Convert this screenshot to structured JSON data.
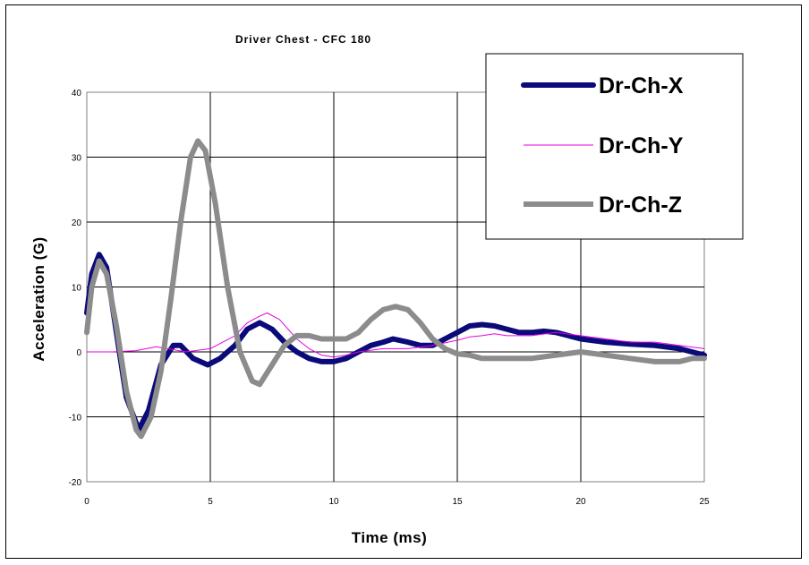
{
  "colors": {
    "background": "#ffffff",
    "gridline": "#000000",
    "dr_ch_x": "#0a0a7a",
    "dr_ch_y": "#e600e6",
    "dr_ch_z": "#8c8c8c"
  },
  "chart_data": {
    "type": "line",
    "title": "Driver Chest - CFC 180",
    "xlabel": "Time (ms)",
    "ylabel": "Acceleration (G)",
    "xlim": [
      0,
      25
    ],
    "ylim": [
      -20,
      40
    ],
    "x_ticks": [
      "0",
      "5",
      "10",
      "15",
      "20",
      "25"
    ],
    "y_ticks": [
      "40",
      "30",
      "20",
      "10",
      "0",
      "-10",
      "-20"
    ],
    "grid": true,
    "legend_position": "top-right",
    "series": [
      {
        "name": "Dr-Ch-X",
        "color": "#0a0a7a",
        "points": [
          [
            0,
            6
          ],
          [
            0.2,
            12
          ],
          [
            0.5,
            15
          ],
          [
            0.8,
            13
          ],
          [
            1.2,
            3
          ],
          [
            1.6,
            -7
          ],
          [
            2.1,
            -12
          ],
          [
            2.5,
            -9
          ],
          [
            3,
            -2
          ],
          [
            3.5,
            1
          ],
          [
            3.8,
            1
          ],
          [
            4.3,
            -1
          ],
          [
            4.9,
            -2
          ],
          [
            5.4,
            -1
          ],
          [
            6,
            1
          ],
          [
            6.5,
            3.5
          ],
          [
            7,
            4.5
          ],
          [
            7.5,
            3.5
          ],
          [
            8,
            1.5
          ],
          [
            8.5,
            0
          ],
          [
            9,
            -1
          ],
          [
            9.5,
            -1.5
          ],
          [
            10,
            -1.5
          ],
          [
            10.5,
            -1
          ],
          [
            11,
            0
          ],
          [
            11.5,
            1
          ],
          [
            12,
            1.5
          ],
          [
            12.4,
            2
          ],
          [
            13,
            1.5
          ],
          [
            13.5,
            1
          ],
          [
            14,
            1
          ],
          [
            14.5,
            2
          ],
          [
            15,
            3
          ],
          [
            15.5,
            4
          ],
          [
            16,
            4.2
          ],
          [
            16.5,
            4
          ],
          [
            17,
            3.5
          ],
          [
            17.5,
            3
          ],
          [
            18,
            3
          ],
          [
            18.5,
            3.2
          ],
          [
            19,
            3
          ],
          [
            19.5,
            2.5
          ],
          [
            20,
            2
          ],
          [
            21,
            1.5
          ],
          [
            22,
            1.2
          ],
          [
            23,
            1
          ],
          [
            24,
            0.5
          ],
          [
            25,
            -0.5
          ]
        ]
      },
      {
        "name": "Dr-Ch-Y",
        "color": "#e600e6",
        "points": [
          [
            0,
            0
          ],
          [
            1,
            0
          ],
          [
            2,
            0.2
          ],
          [
            2.8,
            0.8
          ],
          [
            3.3,
            0.5
          ],
          [
            4,
            0
          ],
          [
            5,
            0.5
          ],
          [
            6,
            2.5
          ],
          [
            6.5,
            4.5
          ],
          [
            7,
            5.5
          ],
          [
            7.3,
            6
          ],
          [
            7.8,
            5
          ],
          [
            8.5,
            2
          ],
          [
            9,
            0.5
          ],
          [
            9.5,
            -0.5
          ],
          [
            10,
            -0.8
          ],
          [
            10.5,
            -0.5
          ],
          [
            11,
            0
          ],
          [
            12,
            0.5
          ],
          [
            13,
            0.5
          ],
          [
            14,
            1
          ],
          [
            15,
            1.8
          ],
          [
            15.5,
            2.3
          ],
          [
            16,
            2.5
          ],
          [
            16.5,
            2.8
          ],
          [
            17,
            2.5
          ],
          [
            18,
            2.5
          ],
          [
            19,
            3
          ],
          [
            20,
            2.5
          ],
          [
            21,
            2
          ],
          [
            22,
            1.5
          ],
          [
            23,
            1.5
          ],
          [
            24,
            1
          ],
          [
            25,
            0.5
          ]
        ]
      },
      {
        "name": "Dr-Ch-Z",
        "color": "#8c8c8c",
        "points": [
          [
            0,
            3
          ],
          [
            0.2,
            10
          ],
          [
            0.5,
            14
          ],
          [
            0.8,
            12
          ],
          [
            1.2,
            4
          ],
          [
            1.6,
            -6
          ],
          [
            2,
            -12
          ],
          [
            2.2,
            -13
          ],
          [
            2.6,
            -10
          ],
          [
            3,
            -3
          ],
          [
            3.4,
            8
          ],
          [
            3.8,
            20
          ],
          [
            4.2,
            30
          ],
          [
            4.5,
            32.5
          ],
          [
            4.8,
            31
          ],
          [
            5.2,
            23
          ],
          [
            5.7,
            10
          ],
          [
            6.2,
            0
          ],
          [
            6.7,
            -4.5
          ],
          [
            7,
            -5
          ],
          [
            7.5,
            -2
          ],
          [
            8,
            1
          ],
          [
            8.5,
            2.5
          ],
          [
            9,
            2.5
          ],
          [
            9.5,
            2
          ],
          [
            10,
            2
          ],
          [
            10.5,
            2
          ],
          [
            11,
            3
          ],
          [
            11.5,
            5
          ],
          [
            12,
            6.5
          ],
          [
            12.5,
            7
          ],
          [
            13,
            6.5
          ],
          [
            13.5,
            4.5
          ],
          [
            14,
            2
          ],
          [
            14.5,
            0.5
          ],
          [
            15,
            -0.3
          ],
          [
            15.5,
            -0.5
          ],
          [
            16,
            -1
          ],
          [
            17,
            -1
          ],
          [
            18,
            -1
          ],
          [
            19,
            -0.5
          ],
          [
            20,
            0
          ],
          [
            21,
            -0.5
          ],
          [
            22,
            -1
          ],
          [
            23,
            -1.5
          ],
          [
            24,
            -1.5
          ],
          [
            24.5,
            -1
          ],
          [
            25,
            -1
          ]
        ]
      }
    ]
  }
}
